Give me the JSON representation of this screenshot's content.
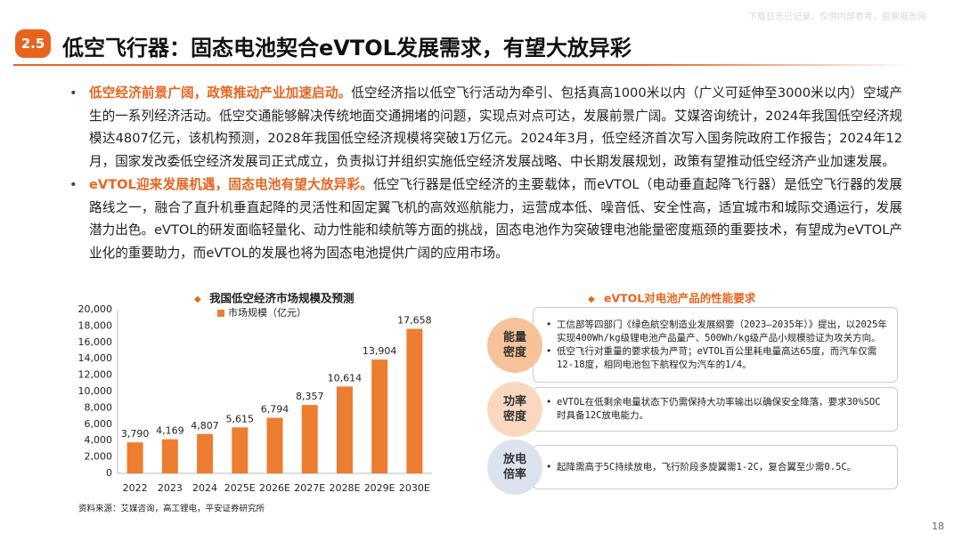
{
  "watermark": "下载日志已记录，仅供内部参考，股票报告网",
  "header": {
    "section": "2.5",
    "title": "低空飞行器：固态电池契合eVTOL发展需求，有望大放异彩"
  },
  "bullets": [
    {
      "lead": "低空经济前景广阔，政策推动产业加速启动。",
      "text": "低空经济指以低空飞行活动为牵引、包括真高1000米以内（广义可延伸至3000米以内）空域产生的一系列经济活动。低空交通能够解决传统地面交通拥堵的问题，实现点对点可达，发展前景广阔。艾媒咨询统计，2024年我国低空经济规模达4807亿元，该机构预测，2028年我国低空经济规模将突破1万亿元。2024年3月，低空经济首次写入国务院政府工作报告；2024年12月，国家发改委低空经济发展司正式成立，负责拟订并组织实施低空经济发展战略、中长期发展规划，政策有望推动低空经济产业加速发展。"
    },
    {
      "lead": "eVTOL迎来发展机遇，固态电池有望大放异彩。",
      "text": "低空飞行器是低空经济的主要载体，而eVTOL（电动垂直起降飞行器）是低空飞行器的发展路线之一，融合了直升机垂直起降的灵活性和固定翼飞机的高效巡航能力，运营成本低、噪音低、安全性高，适宜城市和城际交通运行，发展潜力出色。eVTOL的研发面临轻量化、动力性能和续航等方面的挑战，固态电池作为突破锂电池能量密度瓶颈的重要技术，有望成为eVTOL产业化的重要助力，而eVTOL的发展也将为固态电池提供广阔的应用市场。"
    }
  ],
  "chart": {
    "type": "bar",
    "title": "我国低空经济市场规模及预测",
    "categories": [
      "2022",
      "2023",
      "2024",
      "2025E",
      "2026E",
      "2027E",
      "2028E",
      "2029E",
      "2030E"
    ],
    "series": [
      {
        "name": "市场规模（亿元）",
        "color": "#ed7d31",
        "values": [
          3790,
          4169,
          4807,
          5615,
          6794,
          8357,
          10614,
          13904,
          17658
        ],
        "value_labels": [
          "3,790",
          "4,169",
          "4,807",
          "5,615",
          "6,794",
          "8,357",
          "10,614",
          "13,904",
          "17,658"
        ]
      }
    ],
    "ylim": [
      0,
      20000
    ],
    "yticks": [
      0,
      {
        "value": 2000,
        "label": "2,000"
      },
      {
        "value": 4000,
        "label": "4,000"
      },
      {
        "value": 6000,
        "label": "6,000"
      },
      {
        "value": 8000,
        "label": "8,000"
      },
      {
        "value": 10000,
        "label": "10,000"
      },
      {
        "value": 12000,
        "label": "12,000"
      },
      {
        "value": 14000,
        "label": "14,000"
      },
      {
        "value": 16000,
        "label": "16,000"
      },
      {
        "value": 18000,
        "label": "18,000"
      },
      {
        "value": 20000,
        "label": "20,000"
      }
    ],
    "source": "资料来源：艾媒咨询，高工锂电，平安证券研究所"
  },
  "requirements": {
    "title": "eVTOL对电池产品的性能要求",
    "items": [
      {
        "label": "能量密度",
        "points": [
          "工信部等四部门《绿色航空制造业发展纲要（2023—2035年）》提出，以2025年实现400Wh/kg级锂电池产品量产、500Wh/kg级产品小规模验证为攻关方向。",
          "低空飞行对重量的要求极为严苛；eVTOL百公里耗电量高达65度，而汽车仅需12-18度，相同电池包下航程仅为汽车的1/4。"
        ]
      },
      {
        "label": "功率密度",
        "points": [
          "eVTOL在低剩余电量状态下仍需保持大功率输出以确保安全降落，要求30%SOC时具备12C放电能力。"
        ]
      },
      {
        "label": "放电倍率",
        "points": [
          "起降需高于5C持续放电，飞行阶段多旋翼需1-2C，复合翼至少需0.5C。"
        ]
      }
    ]
  },
  "page_number": "18"
}
